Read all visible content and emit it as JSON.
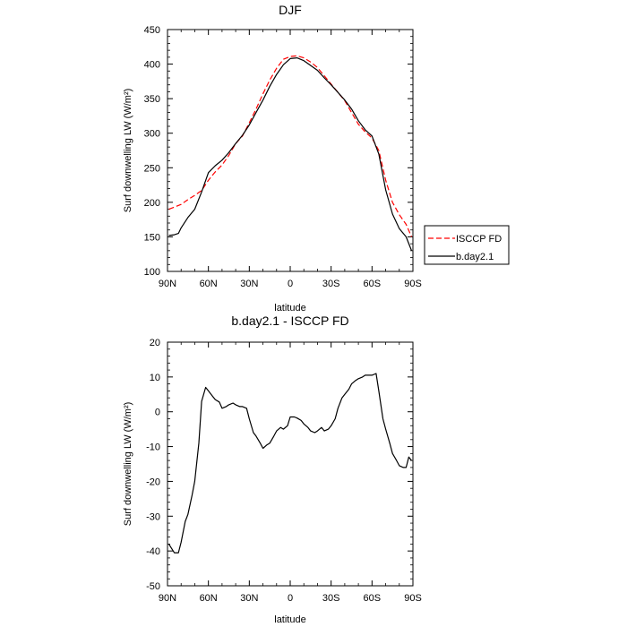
{
  "chart_data": [
    {
      "type": "line",
      "title": "DJF",
      "xlabel": "latitude",
      "ylabel": "Surf downwelling LW (W/m²)",
      "xlim": [
        90,
        -90
      ],
      "ylim": [
        100,
        450
      ],
      "yticks": [
        100,
        150,
        200,
        250,
        300,
        350,
        400,
        450
      ],
      "xticks": [
        {
          "value": 90,
          "label": "90N"
        },
        {
          "value": 60,
          "label": "60N"
        },
        {
          "value": 30,
          "label": "30N"
        },
        {
          "value": 0,
          "label": "0"
        },
        {
          "value": -30,
          "label": "30S"
        },
        {
          "value": -60,
          "label": "60S"
        },
        {
          "value": -90,
          "label": "90S"
        }
      ],
      "legend": {
        "position": "outside-right",
        "entries": [
          "ISCCP FD",
          "b.day2.1"
        ]
      },
      "series": [
        {
          "name": "ISCCP FD",
          "color": "#ff0000",
          "style": "dashed",
          "x": [
            89,
            85,
            80,
            75,
            70,
            65,
            60,
            55,
            50,
            45,
            40,
            35,
            30,
            25,
            20,
            15,
            10,
            5,
            0,
            -5,
            -10,
            -15,
            -20,
            -25,
            -30,
            -35,
            -40,
            -45,
            -50,
            -55,
            -60,
            -65,
            -70,
            -75,
            -80,
            -85,
            -89
          ],
          "y": [
            190,
            193,
            197,
            204,
            210,
            217,
            232,
            244,
            254,
            268,
            285,
            296,
            315,
            335,
            357,
            377,
            394,
            407,
            411,
            412,
            409,
            403,
            395,
            383,
            371,
            359,
            347,
            330,
            313,
            302,
            293,
            275,
            232,
            200,
            182,
            168,
            150
          ]
        },
        {
          "name": "b.day2.1",
          "color": "#000000",
          "style": "solid",
          "x": [
            89,
            85,
            82,
            80,
            75,
            70,
            65,
            60,
            55,
            50,
            45,
            40,
            35,
            30,
            25,
            20,
            15,
            10,
            5,
            0,
            -5,
            -10,
            -15,
            -20,
            -25,
            -30,
            -35,
            -40,
            -45,
            -50,
            -55,
            -60,
            -65,
            -70,
            -75,
            -80,
            -85,
            -89
          ],
          "y": [
            152,
            153,
            155,
            163,
            178,
            190,
            215,
            243,
            253,
            261,
            272,
            285,
            297,
            312,
            330,
            348,
            368,
            385,
            399,
            408,
            409,
            405,
            398,
            391,
            380,
            370,
            359,
            348,
            335,
            318,
            305,
            296,
            270,
            218,
            183,
            162,
            150,
            130
          ]
        }
      ]
    },
    {
      "type": "line",
      "title": "b.day2.1 - ISCCP FD",
      "xlabel": "latitude",
      "ylabel": "Surf downwelling LW (W/m²)",
      "xlim": [
        90,
        -90
      ],
      "ylim": [
        -50,
        20
      ],
      "yticks": [
        -50,
        -40,
        -30,
        -20,
        -10,
        0,
        10,
        20
      ],
      "xticks": [
        {
          "value": 90,
          "label": "90N"
        },
        {
          "value": 60,
          "label": "60N"
        },
        {
          "value": 30,
          "label": "30N"
        },
        {
          "value": 0,
          "label": "0"
        },
        {
          "value": -30,
          "label": "30S"
        },
        {
          "value": -60,
          "label": "60S"
        },
        {
          "value": -90,
          "label": "90S"
        }
      ],
      "series": [
        {
          "name": "b.day2.1 - ISCCP FD",
          "color": "#000000",
          "style": "solid",
          "x": [
            89,
            85,
            82,
            80,
            77,
            75,
            72,
            70,
            67,
            65,
            62,
            60,
            57,
            55,
            52,
            50,
            47,
            45,
            42,
            40,
            37,
            35,
            32,
            30,
            27,
            25,
            22,
            20,
            17,
            15,
            12,
            10,
            7,
            5,
            2,
            0,
            -3,
            -5,
            -8,
            -10,
            -13,
            -15,
            -18,
            -20,
            -23,
            -25,
            -28,
            -30,
            -33,
            -35,
            -38,
            -40,
            -43,
            -45,
            -48,
            -50,
            -53,
            -55,
            -58,
            -60,
            -63,
            -65,
            -68,
            -70,
            -73,
            -75,
            -78,
            -80,
            -83,
            -85,
            -87,
            -89
          ],
          "y": [
            -38,
            -40.5,
            -40.5,
            -37.5,
            -31.5,
            -29.5,
            -24,
            -20,
            -9,
            3,
            7,
            6,
            4.5,
            3.5,
            2.8,
            1,
            1.5,
            2,
            2.5,
            2,
            1.5,
            1.5,
            1,
            -2,
            -6,
            -7,
            -9,
            -10.5,
            -9.5,
            -9,
            -7,
            -5.5,
            -4.5,
            -5,
            -4,
            -1.5,
            -1.5,
            -1.8,
            -2.5,
            -3.5,
            -4.5,
            -5.5,
            -6,
            -5.5,
            -4.5,
            -5.5,
            -5,
            -4,
            -2,
            1,
            4,
            5,
            6.5,
            8,
            9,
            9.5,
            10,
            10.5,
            10.5,
            10.5,
            11,
            6,
            -2,
            -5,
            -9,
            -12,
            -14,
            -15.5,
            -16,
            -16,
            -13,
            -14
          ]
        }
      ]
    }
  ]
}
